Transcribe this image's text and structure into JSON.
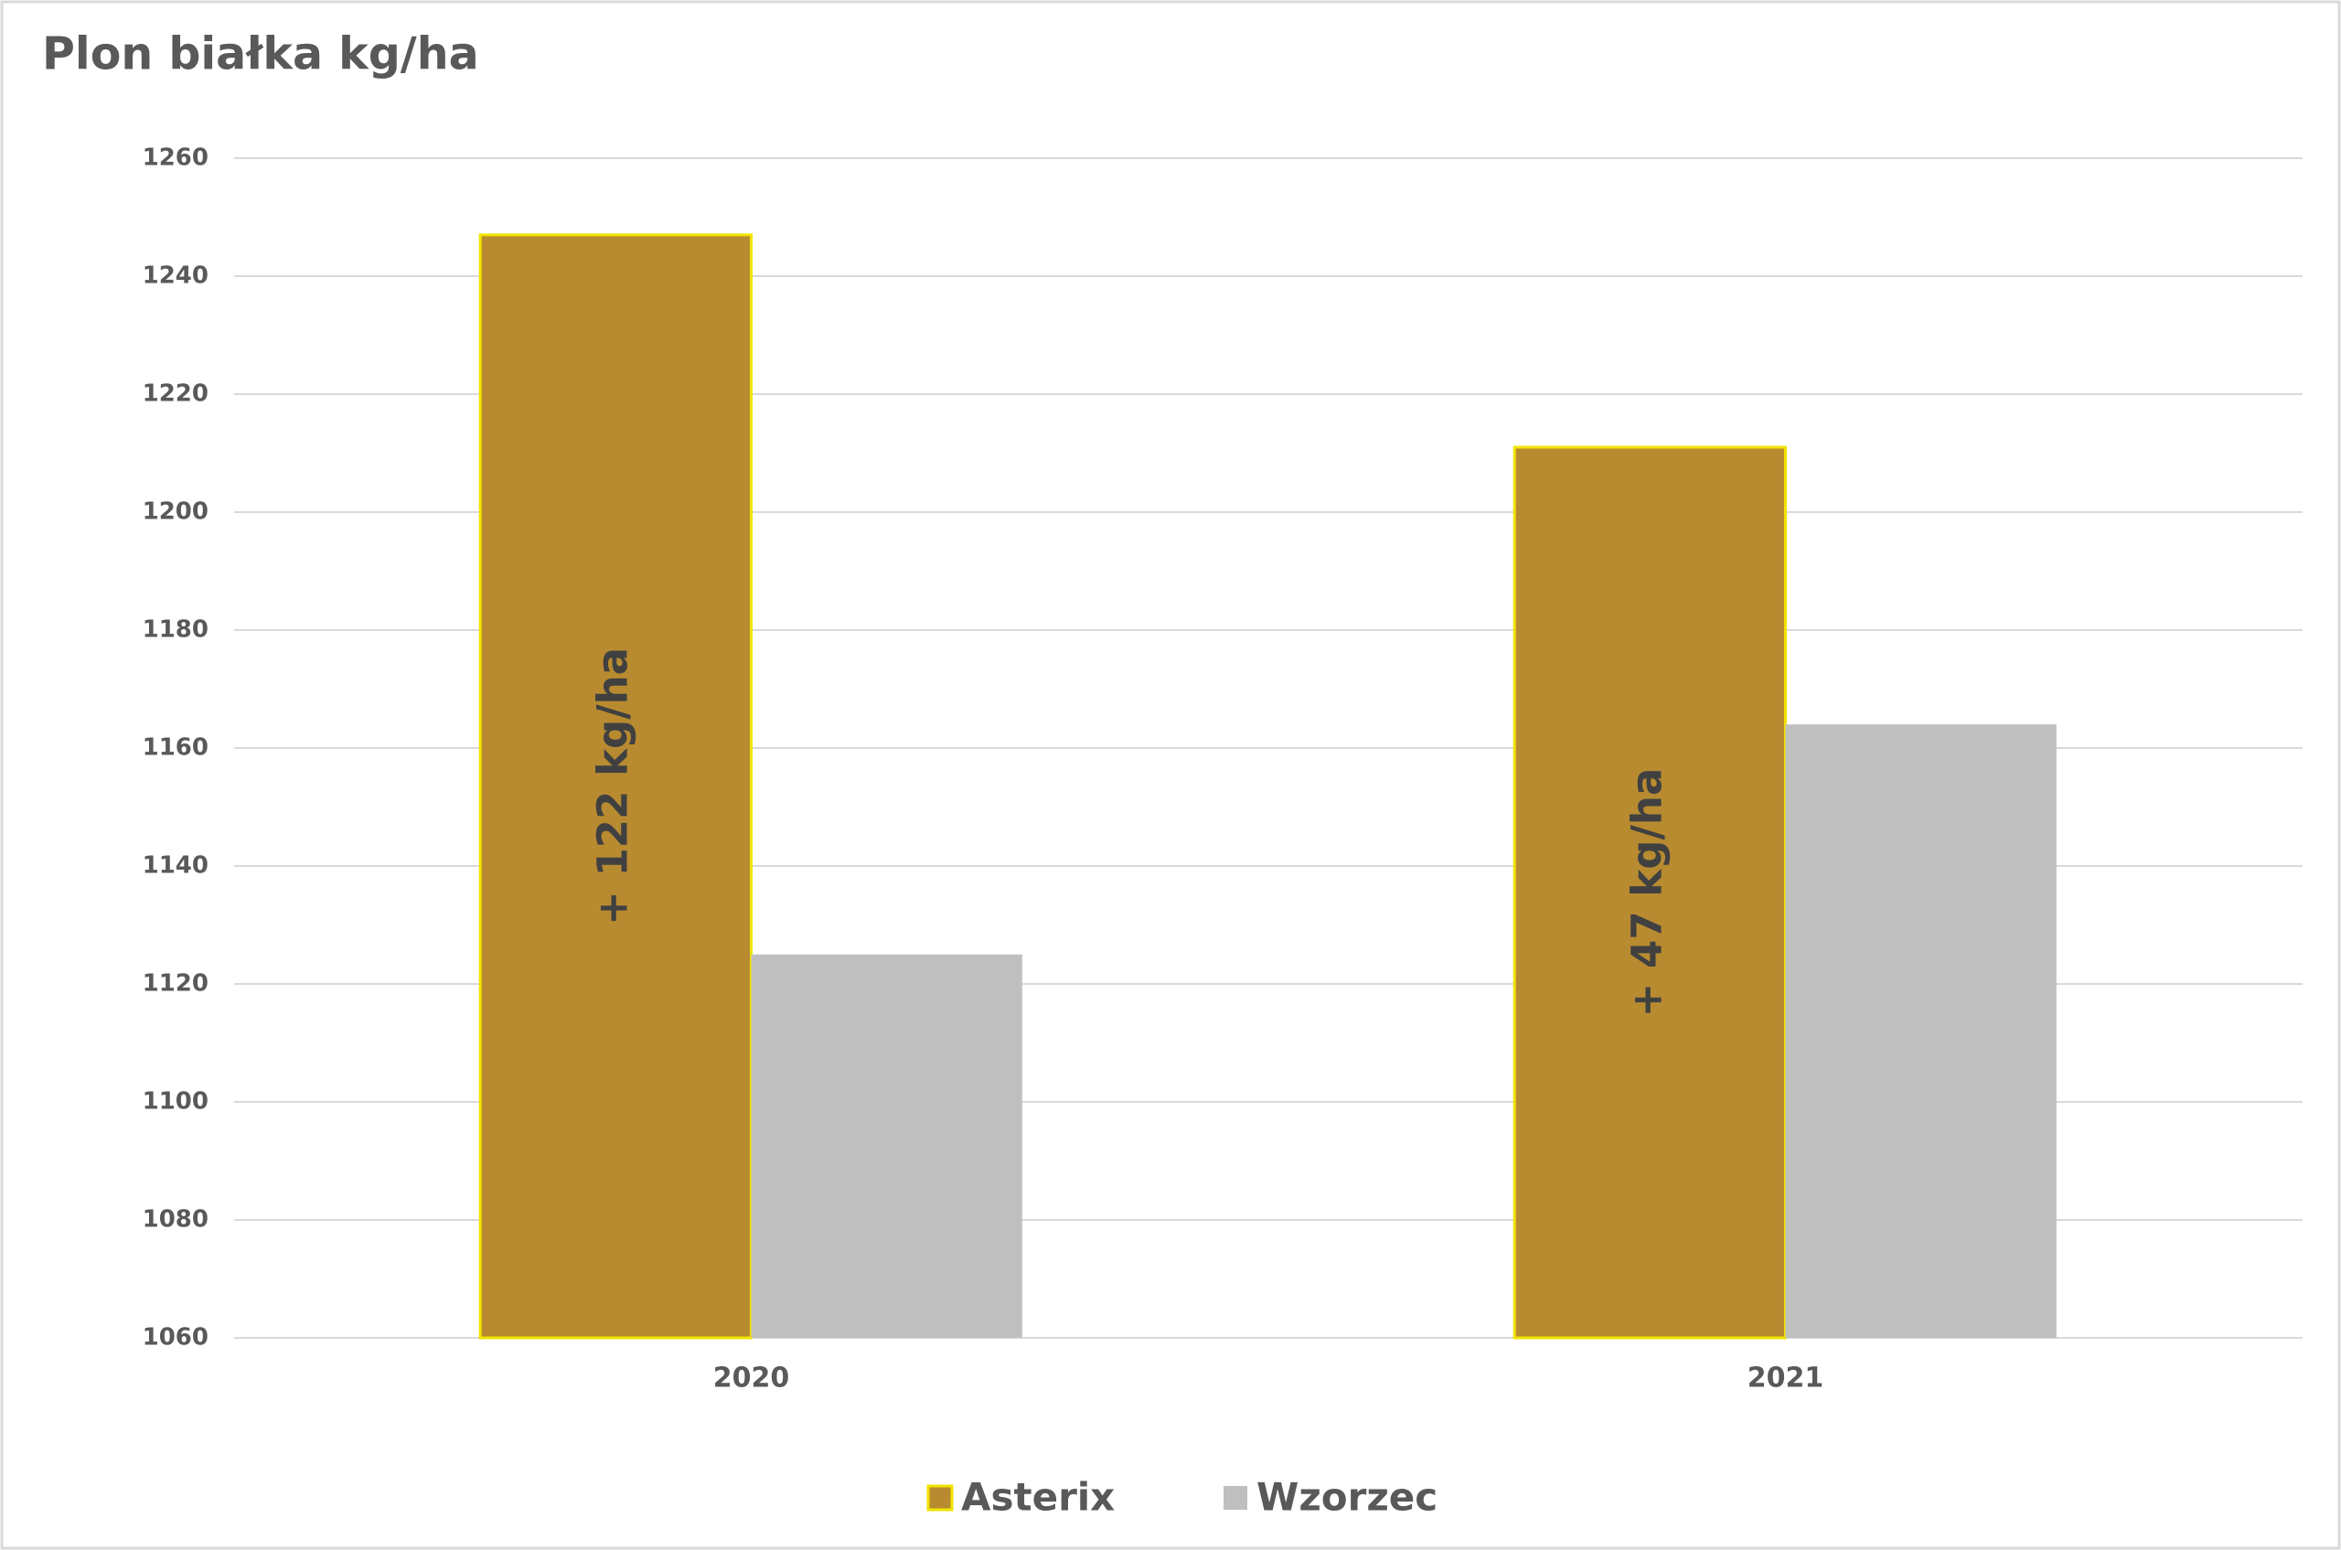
{
  "chart_data": {
    "type": "bar",
    "title": "Plon białka kg/ha",
    "categories": [
      "2020",
      "2021"
    ],
    "series": [
      {
        "name": "Asterix",
        "color": "#b88b31",
        "stroke": "#f2e400",
        "values": [
          1247,
          1211
        ]
      },
      {
        "name": "Wzorzec",
        "color": "#bfbfbf",
        "values": [
          1125,
          1164
        ]
      }
    ],
    "annotations": [
      "+ 122 kg/ha",
      "+ 47 kg/ha"
    ],
    "ylim": [
      1060,
      1260
    ],
    "yticks": [
      1060,
      1080,
      1100,
      1120,
      1140,
      1160,
      1180,
      1200,
      1220,
      1240,
      1260
    ],
    "grid": true,
    "legend": "bottom"
  }
}
